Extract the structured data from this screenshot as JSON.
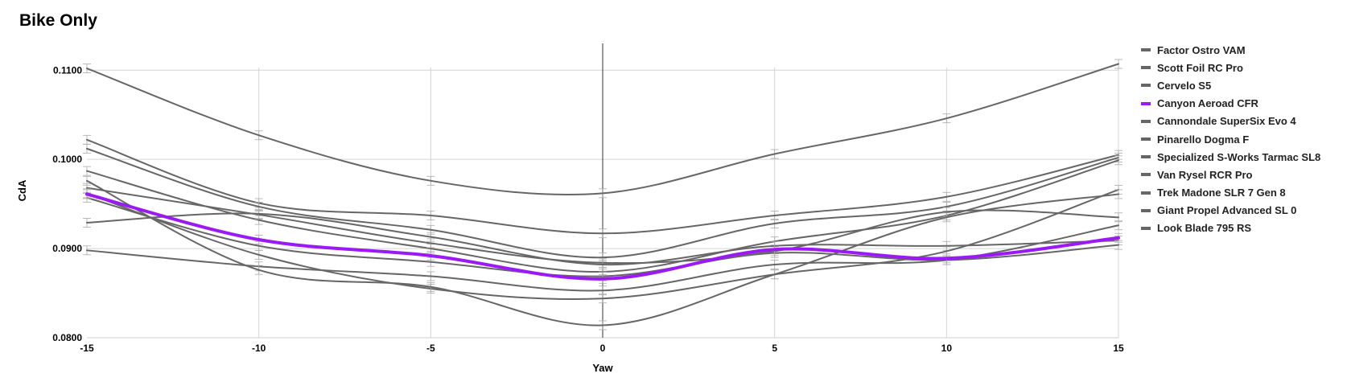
{
  "title": "Bike Only",
  "chart_data": {
    "type": "line",
    "title": "Bike Only",
    "xlabel": "Yaw",
    "ylabel": "CdA",
    "x": [
      -15,
      -10,
      -5,
      0,
      5,
      10,
      15
    ],
    "xticks": [
      "-15",
      "-10",
      "-5",
      "0",
      "5",
      "10",
      "15"
    ],
    "yticks": [
      "0.0800",
      "0.0900",
      "0.1000",
      "0.1100"
    ],
    "xlim": [
      -15,
      15
    ],
    "ylim": [
      0.08,
      0.113
    ],
    "grid": true,
    "legend_position": "right",
    "highlight_color": "#9b19f5",
    "default_color": "#666666",
    "series": [
      {
        "name": "Factor Ostro VAM",
        "values": [
          0.1102,
          0.1027,
          0.0976,
          0.0962,
          0.1006,
          0.1046,
          0.1107
        ]
      },
      {
        "name": "Scott Foil RC Pro",
        "values": [
          0.1022,
          0.0951,
          0.0937,
          0.0917,
          0.0937,
          0.0958,
          0.1005
        ]
      },
      {
        "name": "Cervelo S5",
        "values": [
          0.1012,
          0.0947,
          0.0921,
          0.089,
          0.0928,
          0.0947,
          0.1002
        ]
      },
      {
        "name": "Canyon Aeroad CFR",
        "highlight": true,
        "values": [
          0.0961,
          0.091,
          0.0892,
          0.0866,
          0.0899,
          0.0889,
          0.0912
        ]
      },
      {
        "name": "Cannondale SuperSix Evo 4",
        "values": [
          0.0987,
          0.0932,
          0.09,
          0.0874,
          0.0908,
          0.0937,
          0.0999
        ]
      },
      {
        "name": "Pinarello Dogma F",
        "values": [
          0.0968,
          0.0938,
          0.0906,
          0.0884,
          0.0897,
          0.0941,
          0.0935
        ]
      },
      {
        "name": "Specialized S-Works Tarmac SL8",
        "values": [
          0.0929,
          0.0939,
          0.0913,
          0.0882,
          0.0903,
          0.0903,
          0.0909
        ]
      },
      {
        "name": "Van Rysel RCR Pro",
        "values": [
          0.0957,
          0.0903,
          0.0885,
          0.0869,
          0.0895,
          0.0887,
          0.0904
        ]
      },
      {
        "name": "Trek Madone SLR 7 Gen 8",
        "values": [
          0.0898,
          0.088,
          0.0869,
          0.0853,
          0.0882,
          0.0887,
          0.0926
        ]
      },
      {
        "name": "Giant Propel Advanced SL 0",
        "values": [
          0.0962,
          0.0893,
          0.0855,
          0.0844,
          0.0871,
          0.0897,
          0.0966
        ]
      },
      {
        "name": "Look Blade 795 RS",
        "values": [
          0.0976,
          0.0876,
          0.0857,
          0.0814,
          0.0871,
          0.0935,
          0.0961
        ]
      }
    ]
  }
}
